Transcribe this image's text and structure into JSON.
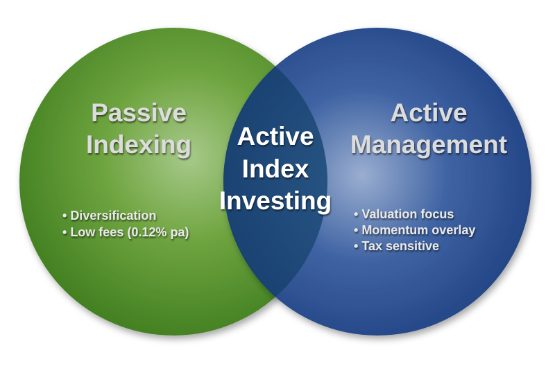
{
  "left_circle": {
    "title_lines": [
      "Passive",
      "Indexing"
    ],
    "bullets": [
      "Diversification",
      "Low fees (0.12% pa)"
    ],
    "color": "#5a9a2e"
  },
  "right_circle": {
    "title_lines": [
      "Active",
      "Management"
    ],
    "bullets": [
      "Valuation focus",
      "Momentum overlay",
      "Tax sensitive"
    ],
    "color": "#2a4d8f"
  },
  "overlap": {
    "title_lines": [
      "Active",
      "Index",
      "Investing"
    ],
    "color": "#1e4a78"
  }
}
